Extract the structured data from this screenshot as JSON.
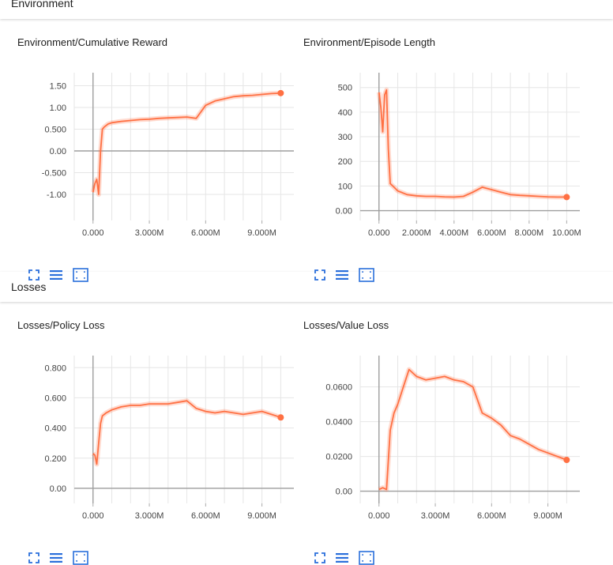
{
  "sections": [
    {
      "title": "Environment"
    },
    {
      "title": "Losses"
    }
  ],
  "toolbar_icons": [
    "expand-icon",
    "list-icon",
    "fit-domain-icon"
  ],
  "accent_color": "#ff7043",
  "chart_data": [
    {
      "type": "line",
      "title": "Environment/Cumulative Reward",
      "xticks": [
        0,
        3000000,
        6000000,
        9000000
      ],
      "xtick_labels": [
        "0.000",
        "3.000M",
        "6.000M",
        "9.000M"
      ],
      "yticks": [
        -1.0,
        -0.5,
        0,
        0.5,
        1.0,
        1.5
      ],
      "ytick_labels": [
        "-1.00",
        "-0.500",
        "0.00",
        "0.500",
        "1.00",
        "1.50"
      ],
      "xlim": [
        -1000000,
        10700000
      ],
      "ylim": [
        -1.6,
        1.8
      ],
      "grid": true,
      "series": [
        {
          "x": [
            0,
            100000,
            200000,
            300000,
            400000,
            500000,
            600000,
            800000,
            1000000,
            1500000,
            2000000,
            2500000,
            3000000,
            3500000,
            4000000,
            4500000,
            5000000,
            5500000,
            6000000,
            6500000,
            7000000,
            7500000,
            8000000,
            8500000,
            9000000,
            9500000,
            10000000
          ],
          "y": [
            -0.95,
            -0.75,
            -0.65,
            -1.0,
            0.0,
            0.5,
            0.55,
            0.62,
            0.65,
            0.68,
            0.7,
            0.72,
            0.73,
            0.75,
            0.76,
            0.77,
            0.78,
            0.75,
            1.05,
            1.15,
            1.2,
            1.25,
            1.27,
            1.28,
            1.3,
            1.32,
            1.33
          ]
        }
      ]
    },
    {
      "type": "line",
      "title": "Environment/Episode Length",
      "xticks": [
        0,
        2000000,
        4000000,
        6000000,
        8000000,
        10000000
      ],
      "xtick_labels": [
        "0.000",
        "2.000M",
        "4.000M",
        "6.000M",
        "8.000M",
        "10.00M"
      ],
      "yticks": [
        0,
        100,
        200,
        300,
        400,
        500
      ],
      "ytick_labels": [
        "0.00",
        "100",
        "200",
        "300",
        "400",
        "500"
      ],
      "xlim": [
        -1000000,
        10700000
      ],
      "ylim": [
        -40,
        560
      ],
      "grid": true,
      "series": [
        {
          "x": [
            0,
            100000,
            200000,
            300000,
            400000,
            500000,
            600000,
            800000,
            1000000,
            1500000,
            2000000,
            2500000,
            3000000,
            3500000,
            4000000,
            4500000,
            5000000,
            5500000,
            6000000,
            6500000,
            7000000,
            7500000,
            8000000,
            8500000,
            9000000,
            9500000,
            10000000
          ],
          "y": [
            480,
            420,
            320,
            470,
            490,
            250,
            110,
            95,
            80,
            65,
            60,
            58,
            58,
            56,
            55,
            58,
            75,
            95,
            85,
            75,
            65,
            62,
            60,
            58,
            56,
            55,
            55
          ]
        }
      ]
    },
    {
      "type": "line",
      "title": "Losses/Policy Loss",
      "xticks": [
        0,
        3000000,
        6000000,
        9000000
      ],
      "xtick_labels": [
        "0.000",
        "3.000M",
        "6.000M",
        "9.000M"
      ],
      "yticks": [
        0,
        0.2,
        0.4,
        0.6,
        0.8
      ],
      "ytick_labels": [
        "0.00",
        "0.200",
        "0.400",
        "0.600",
        "0.800"
      ],
      "xlim": [
        -1000000,
        10700000
      ],
      "ylim": [
        -0.1,
        0.88
      ],
      "grid": true,
      "series": [
        {
          "x": [
            0,
            100000,
            200000,
            300000,
            400000,
            500000,
            700000,
            1000000,
            1500000,
            2000000,
            2500000,
            3000000,
            3500000,
            4000000,
            4500000,
            5000000,
            5500000,
            6000000,
            6500000,
            7000000,
            7500000,
            8000000,
            8500000,
            9000000,
            9500000,
            10000000
          ],
          "y": [
            0.23,
            0.22,
            0.16,
            0.3,
            0.43,
            0.48,
            0.5,
            0.52,
            0.54,
            0.55,
            0.55,
            0.56,
            0.56,
            0.56,
            0.57,
            0.58,
            0.53,
            0.51,
            0.5,
            0.51,
            0.5,
            0.49,
            0.5,
            0.51,
            0.49,
            0.47
          ]
        }
      ]
    },
    {
      "type": "line",
      "title": "Losses/Value Loss",
      "xticks": [
        0,
        3000000,
        6000000,
        9000000
      ],
      "xtick_labels": [
        "0.000",
        "3.000M",
        "6.000M",
        "9.000M"
      ],
      "yticks": [
        0,
        0.02,
        0.04,
        0.06
      ],
      "ytick_labels": [
        "0.00",
        "0.0200",
        "0.0400",
        "0.0600"
      ],
      "xlim": [
        -1000000,
        10700000
      ],
      "ylim": [
        -0.007,
        0.078
      ],
      "grid": true,
      "series": [
        {
          "x": [
            0,
            200000,
            400000,
            600000,
            800000,
            1000000,
            1300000,
            1600000,
            2000000,
            2500000,
            3000000,
            3500000,
            4000000,
            4500000,
            5000000,
            5500000,
            6000000,
            6500000,
            7000000,
            7500000,
            8000000,
            8500000,
            9000000,
            9500000,
            10000000
          ],
          "y": [
            0.001,
            0.002,
            0.001,
            0.035,
            0.045,
            0.05,
            0.06,
            0.07,
            0.066,
            0.064,
            0.065,
            0.066,
            0.064,
            0.063,
            0.06,
            0.045,
            0.042,
            0.038,
            0.032,
            0.03,
            0.027,
            0.024,
            0.022,
            0.02,
            0.018
          ]
        }
      ]
    }
  ]
}
